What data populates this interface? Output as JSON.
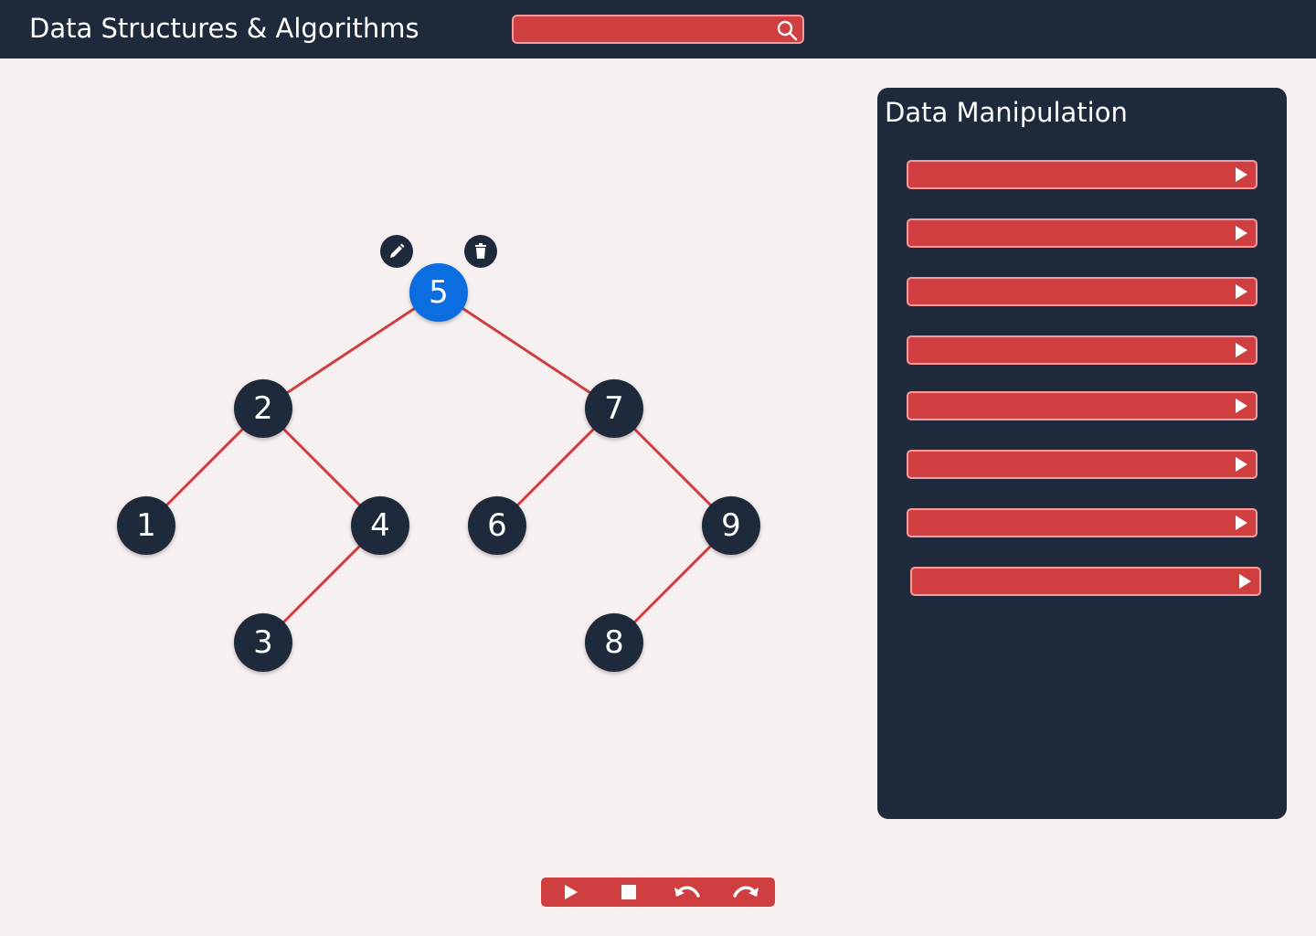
{
  "header": {
    "title": "Data Structures & Algorithms",
    "search": {
      "value": "",
      "placeholder": ""
    }
  },
  "tree": {
    "selected": "5",
    "nodes": {
      "n5": "5",
      "n2": "2",
      "n7": "7",
      "n1": "1",
      "n4": "4",
      "n6": "6",
      "n9": "9",
      "n3": "3",
      "n8": "8"
    },
    "edges": [
      [
        "5",
        "2"
      ],
      [
        "5",
        "7"
      ],
      [
        "2",
        "1"
      ],
      [
        "2",
        "4"
      ],
      [
        "4",
        "3"
      ],
      [
        "7",
        "6"
      ],
      [
        "7",
        "9"
      ],
      [
        "9",
        "8"
      ]
    ]
  },
  "panel": {
    "title": "Data Manipulation",
    "operations": [
      "",
      "",
      "",
      "",
      "",
      "",
      "",
      ""
    ]
  },
  "colors": {
    "dark": "#1e293b",
    "accent_red": "#cf3f3f",
    "accent_border": "#f59b9b",
    "selected_node": "#0b6de0",
    "edge": "#cf3f3f",
    "background": "#f6f0f0"
  },
  "icons": {
    "search": "search-icon",
    "edit": "pencil-icon",
    "delete": "trash-icon",
    "run_operation": "play-icon",
    "playback": [
      "play-icon",
      "stop-icon",
      "undo-icon",
      "redo-icon"
    ]
  }
}
